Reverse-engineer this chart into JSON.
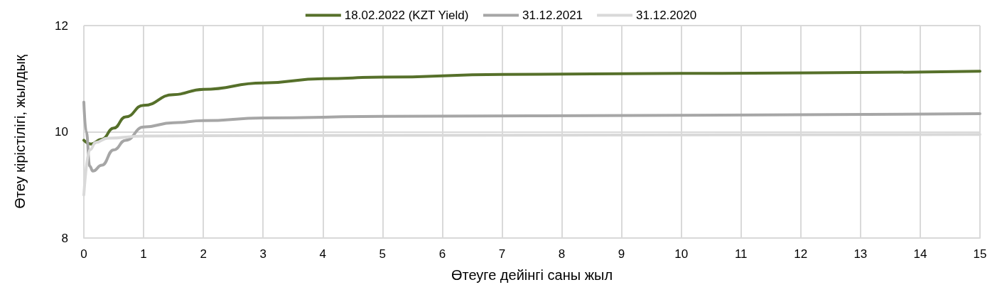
{
  "chart_data": {
    "type": "line",
    "xlabel": "Өтеуге дейінгі саны жыл",
    "ylabel": "Өтеу кірістілігі, жылдық",
    "xlim": [
      0,
      15
    ],
    "xticks": [
      0,
      1,
      2,
      3,
      4,
      5,
      6,
      7,
      8,
      9,
      10,
      11,
      12,
      13,
      14,
      15
    ],
    "ylim": [
      8,
      12
    ],
    "yticks": [
      8,
      10,
      12
    ],
    "grid": true,
    "legend": "top",
    "marker": "none",
    "line_style": "solid",
    "series": [
      {
        "name": "18.02.2022 (KZT Yield)",
        "color": "#56702a",
        "x": [
          0,
          0.12,
          0.3,
          0.5,
          0.7,
          1,
          1.5,
          2,
          3,
          4,
          5,
          7,
          10,
          15
        ],
        "values": [
          9.84,
          9.77,
          9.86,
          10.07,
          10.28,
          10.5,
          10.7,
          10.8,
          10.92,
          11.0,
          11.03,
          11.08,
          11.1,
          11.14
        ]
      },
      {
        "name": "31.12.2021",
        "color": "#a6a6a6",
        "x": [
          0,
          0.04,
          0.1,
          0.15,
          0.3,
          0.5,
          0.7,
          1,
          1.5,
          2,
          3,
          5,
          10,
          15
        ],
        "values": [
          10.56,
          10.0,
          9.35,
          9.26,
          9.37,
          9.66,
          9.84,
          10.09,
          10.17,
          10.21,
          10.26,
          10.29,
          10.31,
          10.34
        ]
      },
      {
        "name": "31.12.2020",
        "color": "#d9d9d9",
        "x": [
          0,
          0.1,
          0.2,
          0.4,
          1,
          3,
          15
        ],
        "values": [
          8.81,
          9.66,
          9.8,
          9.88,
          9.92,
          9.93,
          9.95
        ]
      }
    ]
  }
}
